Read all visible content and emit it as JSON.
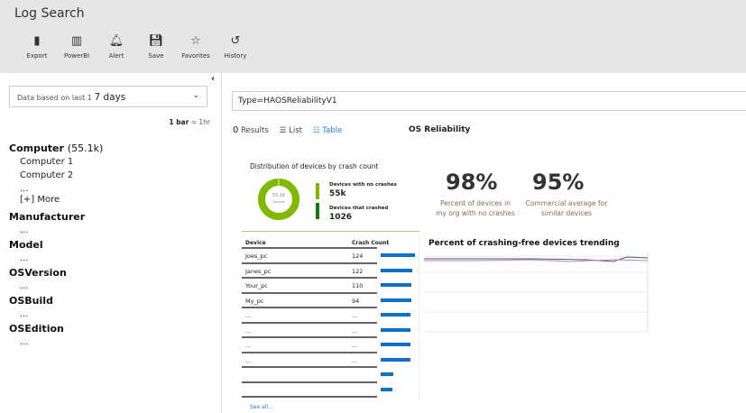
{
  "app": {
    "title": "Log Search"
  },
  "toolbar": [
    {
      "label": "Export",
      "icon": "excel-icon"
    },
    {
      "label": "PowerBI",
      "icon": "powerbi-icon"
    },
    {
      "label": "Alert",
      "icon": "bell-icon"
    },
    {
      "label": "Save",
      "icon": "save-icon"
    },
    {
      "label": "Favorites",
      "icon": "star-icon"
    },
    {
      "label": "History",
      "icon": "history-icon"
    }
  ],
  "left": {
    "range_prefix": "Data based on last 1",
    "range_value": "7 days",
    "bar_label": "1 bar",
    "bar_eq": "= 1hr",
    "facets": [
      {
        "name": "Computer",
        "count": "(55.1k)",
        "items": [
          "Computer 1",
          "Computer 2",
          "...",
          "[+] More"
        ]
      },
      {
        "name": "Manufacturer",
        "items": [
          "..."
        ]
      },
      {
        "name": "Model",
        "items": [
          "..."
        ]
      },
      {
        "name": "OSVersion",
        "items": [
          "..."
        ]
      },
      {
        "name": "OSBuild",
        "items": [
          "..."
        ]
      },
      {
        "name": "OSEdition",
        "items": [
          "..."
        ]
      }
    ]
  },
  "query": {
    "value": "Type=HAOSReliabilityV1"
  },
  "results": {
    "count": "0",
    "label": "Results",
    "list": "List",
    "table": "Table",
    "view_title": "OS Reliability"
  },
  "tile": {
    "dist_title": "Distribution of devices by crash count",
    "donut_value": "55.1K",
    "donut_label": "Devices",
    "no_crash_label": "Devices with no crashes",
    "no_crash_value": "55k",
    "crashed_label": "Devices that crashed",
    "crashed_value": "1026",
    "pct_org": "98%",
    "pct_org_caption_1": "Percent of devices in",
    "pct_org_caption_2": "my org with no crashes",
    "pct_avg": "95%",
    "pct_avg_caption_1": "Commercial average  for",
    "pct_avg_caption_2": "similar devices",
    "colors": {
      "no_crash": "#7fba00",
      "crashed": "#107c10",
      "bar": "#1070c8"
    }
  },
  "table": {
    "headers": [
      "Device",
      "Crash Count"
    ],
    "rows": [
      [
        "Joes_pc",
        "124",
        1.0
      ],
      [
        "Janes_pc",
        "122",
        0.93
      ],
      [
        "Your_pc",
        "110",
        0.9
      ],
      [
        "My_pc",
        "94",
        0.9
      ],
      [
        "...",
        "...",
        0.88
      ],
      [
        "...",
        "...",
        0.87
      ],
      [
        "...",
        "...",
        0.87
      ],
      [
        "...",
        "...",
        0.86
      ],
      [
        "",
        "",
        0.36
      ],
      [
        "",
        "",
        0.33
      ]
    ],
    "see_all": "See all..."
  },
  "trend": {
    "title": "Percent of crashing-free devices trending"
  }
}
